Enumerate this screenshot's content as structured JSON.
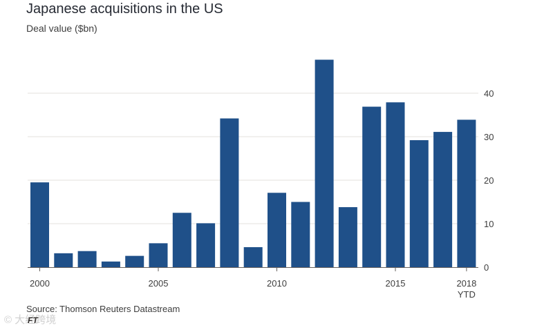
{
  "header": {
    "title": "Japanese acquisitions in the US",
    "subtitle": "Deal value ($bn)"
  },
  "footer": {
    "source": "Source: Thomson Reuters Datastream",
    "brand": "FT",
    "watermark": "© 大经跨境"
  },
  "colors": {
    "bar": "#1f5089",
    "grid": "#e3e1de",
    "axis": "#66605c",
    "text": "#3d3d3d"
  },
  "chart_data": {
    "type": "bar",
    "title": "Japanese acquisitions in the US",
    "ylabel": "Deal value ($bn)",
    "xlabel": "",
    "categories": [
      "2000",
      "2001",
      "2002",
      "2003",
      "2004",
      "2005",
      "2006",
      "2007",
      "2008",
      "2009",
      "2010",
      "2011",
      "2012",
      "2013",
      "2014",
      "2015",
      "2016",
      "2017",
      "2018 YTD"
    ],
    "values": [
      19.5,
      3.2,
      3.7,
      1.3,
      2.6,
      5.5,
      12.5,
      10.1,
      34.2,
      4.6,
      17.1,
      15.0,
      47.7,
      13.8,
      36.9,
      37.9,
      29.2,
      31.1,
      33.9
    ],
    "ylim": [
      0,
      50
    ],
    "yticks": [
      0,
      10,
      20,
      30,
      40
    ],
    "yaxis_position": "right",
    "xtick_labels": [
      {
        "index": 0,
        "label": "2000",
        "sub": ""
      },
      {
        "index": 5,
        "label": "2005",
        "sub": ""
      },
      {
        "index": 10,
        "label": "2010",
        "sub": ""
      },
      {
        "index": 15,
        "label": "2015",
        "sub": ""
      },
      {
        "index": 18,
        "label": "2018",
        "sub": "YTD"
      }
    ],
    "grid": true
  }
}
